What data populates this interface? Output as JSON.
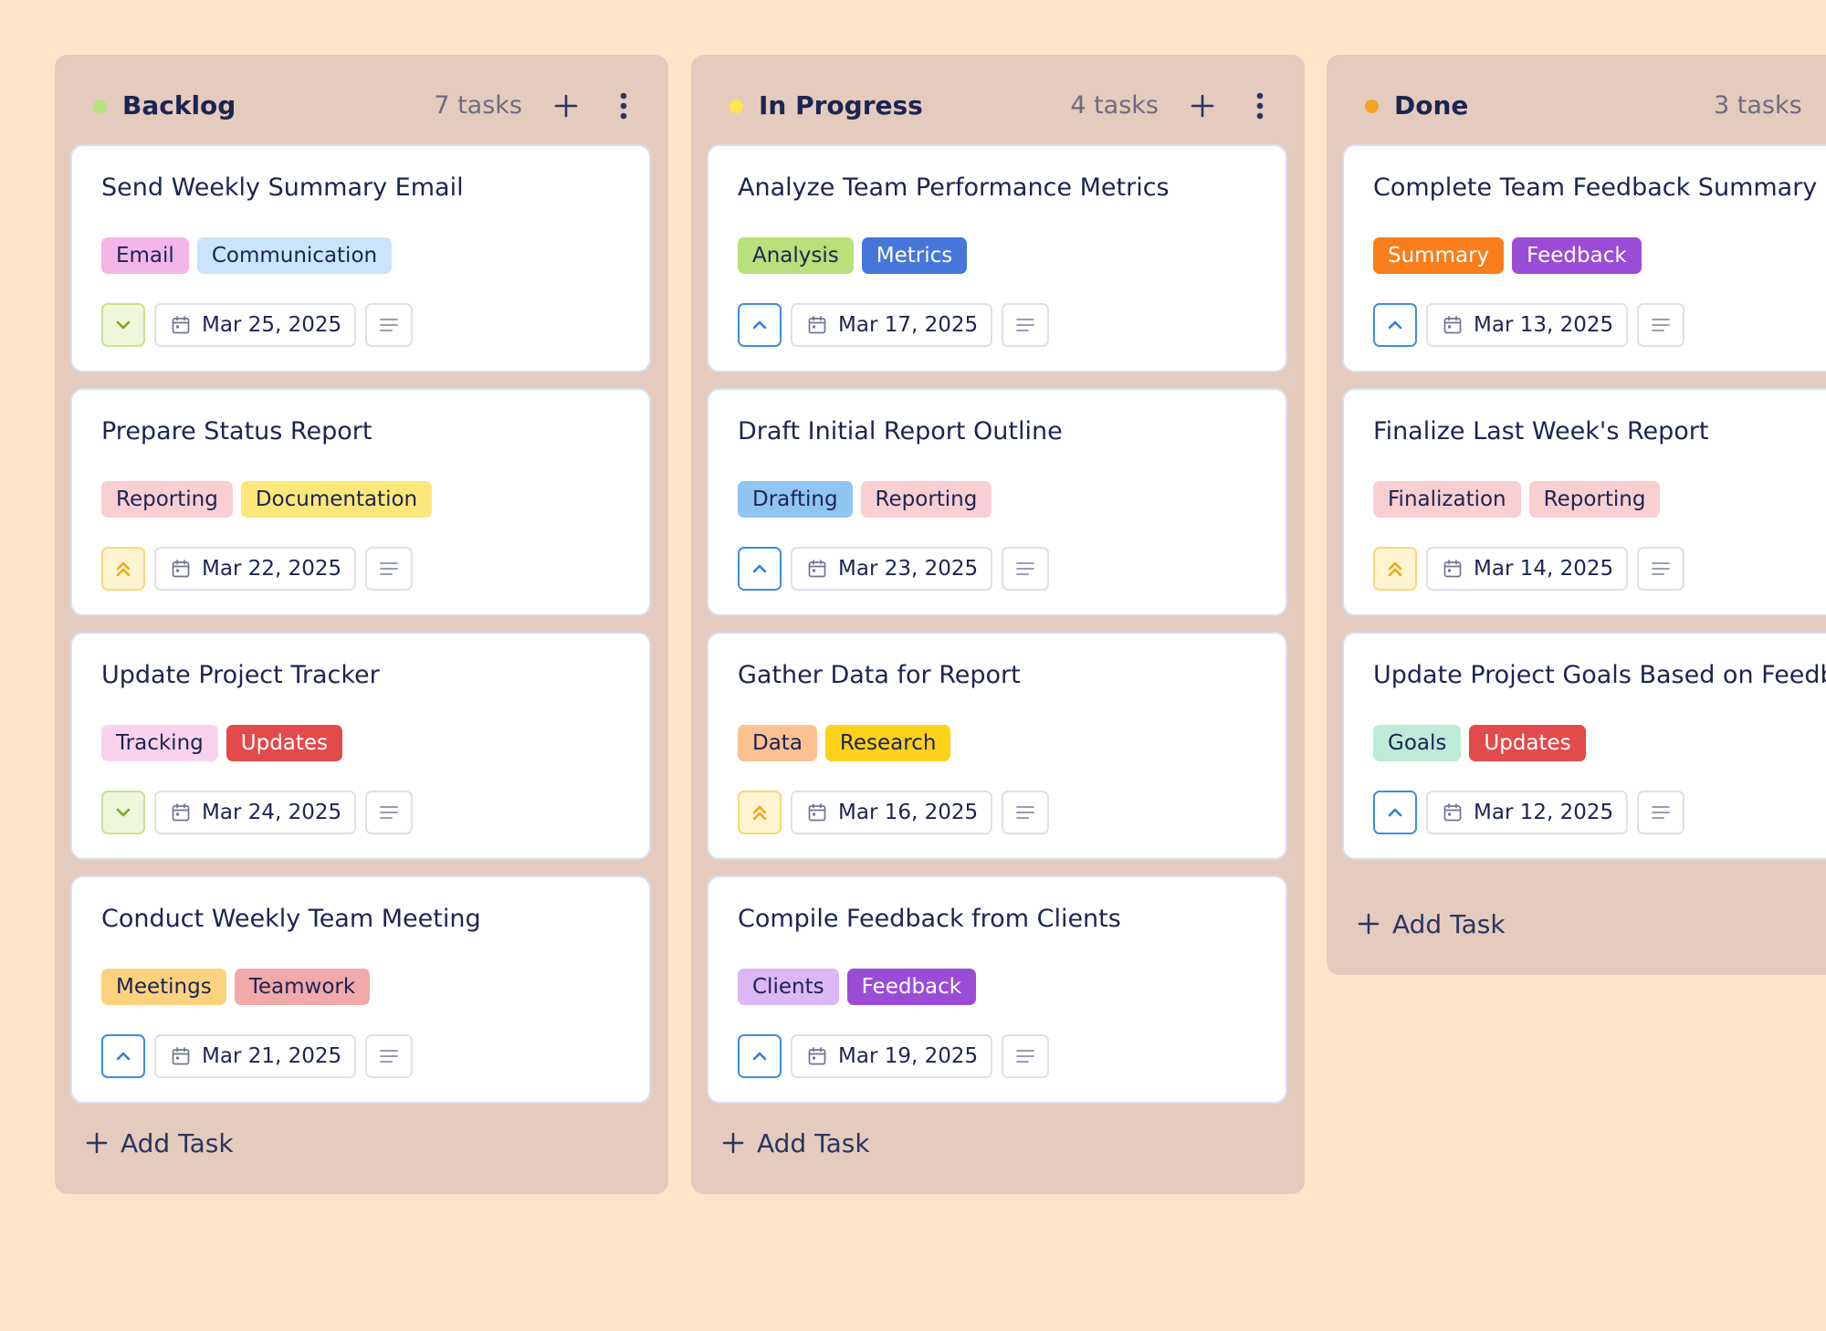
{
  "add_task_label": "Add Task",
  "colors": {
    "page_bg": "#FFE4C9",
    "column_bg": "#E5CBBE",
    "text": "#1C2452"
  },
  "columns": [
    {
      "title": "Backlog",
      "count": "7 tasks",
      "dot_color": "#B5E27C",
      "show_actions": true,
      "cards": [
        {
          "title": "Send Weekly Summary Email",
          "tags": [
            {
              "label": "Email",
              "bg": "#F3B6E8",
              "fg": "#1C2452"
            },
            {
              "label": "Communication",
              "bg": "#C9E4FB",
              "fg": "#1C2452"
            }
          ],
          "priority": "low",
          "priority_icon": "chevron-down-icon",
          "date": "Mar 25, 2025"
        },
        {
          "title": "Prepare Status Report",
          "tags": [
            {
              "label": "Reporting",
              "bg": "#F8CFD2",
              "fg": "#1C2452"
            },
            {
              "label": "Documentation",
              "bg": "#FCE87A",
              "fg": "#1C2452"
            }
          ],
          "priority": "high",
          "priority_icon": "double-chevron-up-icon",
          "date": "Mar 22, 2025"
        },
        {
          "title": "Update Project Tracker",
          "tags": [
            {
              "label": "Tracking",
              "bg": "#F9D3ED",
              "fg": "#1C2452"
            },
            {
              "label": "Updates",
              "bg": "#E14B4B",
              "fg": "#FFFFFF"
            }
          ],
          "priority": "low",
          "priority_icon": "chevron-down-icon",
          "date": "Mar 24, 2025"
        },
        {
          "title": "Conduct Weekly Team Meeting",
          "tags": [
            {
              "label": "Meetings",
              "bg": "#FDD27F",
              "fg": "#1C2452"
            },
            {
              "label": "Teamwork",
              "bg": "#F1A9A9",
              "fg": "#1C2452"
            }
          ],
          "priority": "medium",
          "priority_icon": "chevron-up-icon",
          "date": "Mar 21, 2025"
        }
      ]
    },
    {
      "title": "In Progress",
      "count": "4 tasks",
      "dot_color": "#FDE74C",
      "show_actions": true,
      "cards": [
        {
          "title": "Analyze Team Performance Metrics",
          "tags": [
            {
              "label": "Analysis",
              "bg": "#B9E07A",
              "fg": "#1C2452"
            },
            {
              "label": "Metrics",
              "bg": "#4676D9",
              "fg": "#FFFFFF"
            }
          ],
          "priority": "medium",
          "priority_icon": "chevron-up-icon",
          "date": "Mar 17, 2025"
        },
        {
          "title": "Draft Initial Report Outline",
          "tags": [
            {
              "label": "Drafting",
              "bg": "#90C5F2",
              "fg": "#1C2452"
            },
            {
              "label": "Reporting",
              "bg": "#F8CFD2",
              "fg": "#1C2452"
            }
          ],
          "priority": "medium",
          "priority_icon": "chevron-up-icon",
          "date": "Mar 23, 2025"
        },
        {
          "title": "Gather Data for Report",
          "tags": [
            {
              "label": "Data",
              "bg": "#FCC191",
              "fg": "#1C2452"
            },
            {
              "label": "Research",
              "bg": "#FCD11A",
              "fg": "#1C2452"
            }
          ],
          "priority": "high",
          "priority_icon": "double-chevron-up-icon",
          "date": "Mar 16, 2025"
        },
        {
          "title": "Compile Feedback from Clients",
          "tags": [
            {
              "label": "Clients",
              "bg": "#DDB6F6",
              "fg": "#1C2452"
            },
            {
              "label": "Feedback",
              "bg": "#9B4CD6",
              "fg": "#FFFFFF"
            }
          ],
          "priority": "medium",
          "priority_icon": "chevron-up-icon",
          "date": "Mar 19, 2025"
        }
      ]
    },
    {
      "title": "Done",
      "count": "3 tasks",
      "dot_color": "#F7A324",
      "show_actions": false,
      "cards": [
        {
          "title": "Complete Team Feedback Summary",
          "tags": [
            {
              "label": "Summary",
              "bg": "#F97E1B",
              "fg": "#FFFFFF"
            },
            {
              "label": "Feedback",
              "bg": "#9B4CD6",
              "fg": "#FFFFFF"
            }
          ],
          "priority": "medium",
          "priority_icon": "chevron-up-icon",
          "date": "Mar 13, 2025"
        },
        {
          "title": "Finalize Last Week's Report",
          "tags": [
            {
              "label": "Finalization",
              "bg": "#F8CFD2",
              "fg": "#1C2452"
            },
            {
              "label": "Reporting",
              "bg": "#F8CFD2",
              "fg": "#1C2452"
            }
          ],
          "priority": "high",
          "priority_icon": "double-chevron-up-icon",
          "date": "Mar 14, 2025"
        },
        {
          "title": "Update Project Goals Based on Feedback",
          "tags": [
            {
              "label": "Goals",
              "bg": "#BDEBD8",
              "fg": "#1C2452"
            },
            {
              "label": "Updates",
              "bg": "#E14B4B",
              "fg": "#FFFFFF"
            }
          ],
          "priority": "medium",
          "priority_icon": "chevron-up-icon",
          "date": "Mar 12, 2025"
        }
      ]
    }
  ]
}
